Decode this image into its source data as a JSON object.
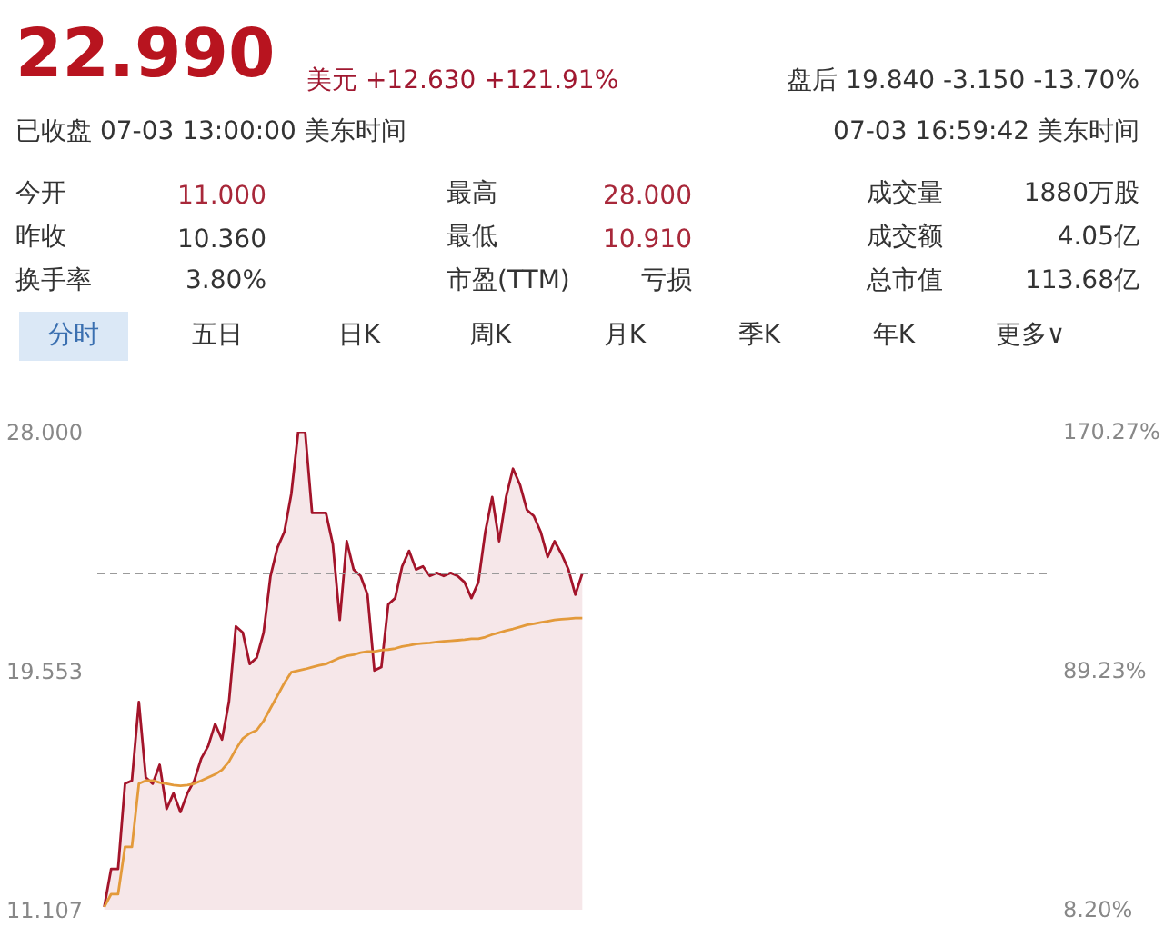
{
  "chart_data": [
    {
      "type": "other",
      "title": "22.990",
      "annotations": [
        "美元 +12.630 +121.91%",
        "盘后 19.840 -3.150 -13.70%",
        "已收盘 07-03 13:00:00 美东时间",
        "07-03 16:59:42 美东时间",
        "今开",
        "11.000",
        "最高",
        "28.000",
        "成交量",
        "1880万股",
        "昨收",
        "10.360",
        "最低",
        "10.910",
        "成交额",
        "4.05亿",
        "换手率",
        "3.80%",
        "市盈(TTM)",
        "亏损",
        "总市值",
        "113.68亿",
        "分时",
        "五日",
        "日K",
        "周K",
        "月K",
        "季K",
        "年K",
        "更多∨"
      ]
    },
    {
      "type": "area",
      "categories": [
        null,
        null,
        null,
        null,
        null,
        null,
        null,
        null,
        null,
        null,
        null,
        null,
        null,
        null,
        null,
        null,
        null,
        null,
        null,
        null,
        null,
        null,
        null,
        null,
        null,
        null,
        null,
        null,
        null,
        null,
        null,
        null,
        null,
        null,
        null,
        null,
        null,
        null,
        null,
        null,
        null,
        null,
        null,
        null,
        null,
        null,
        null,
        null,
        null,
        null,
        null,
        null,
        null,
        null,
        null,
        null,
        null,
        null,
        null,
        null,
        null,
        null,
        null,
        null,
        null,
        null,
        null,
        null,
        null,
        null
      ],
      "series": [
        {
          "type": "area",
          "color": "#a3142a",
          "values": [
            11.2,
            12.55,
            12.55,
            15.56,
            15.67,
            18.45,
            15.78,
            15.56,
            16.23,
            14.67,
            15.22,
            14.56,
            15.22,
            15.67,
            16.45,
            16.89,
            17.67,
            17.12,
            18.45,
            21.12,
            20.9,
            19.79,
            20.01,
            20.9,
            22.9,
            23.9,
            24.46,
            25.8,
            28.0,
            28.0,
            25.13,
            25.13,
            25.13,
            24.02,
            21.35,
            24.13,
            23.13,
            22.9,
            22.24,
            19.56,
            19.68,
            21.9,
            22.12,
            23.24,
            23.79,
            23.13,
            23.24,
            22.9,
            23.01,
            22.9,
            23.01,
            22.9,
            22.68,
            22.12,
            22.68,
            24.46,
            25.69,
            24.13,
            25.69,
            26.69,
            26.13,
            25.24,
            25.02,
            24.46,
            23.57,
            24.13,
            23.68,
            23.13,
            22.24,
            22.99
          ]
        },
        {
          "type": "line",
          "color": "#e39a3b",
          "values": [
            11.2,
            11.66,
            11.66,
            13.33,
            13.33,
            15.56,
            15.67,
            15.67,
            15.6,
            15.56,
            15.51,
            15.49,
            15.51,
            15.56,
            15.67,
            15.78,
            15.89,
            16.05,
            16.34,
            16.78,
            17.16,
            17.34,
            17.45,
            17.78,
            18.23,
            18.67,
            19.12,
            19.5,
            19.56,
            19.61,
            19.68,
            19.74,
            19.79,
            19.9,
            20.01,
            20.08,
            20.12,
            20.19,
            20.23,
            20.23,
            20.28,
            20.3,
            20.34,
            20.41,
            20.45,
            20.5,
            20.52,
            20.54,
            20.57,
            20.59,
            20.61,
            20.63,
            20.65,
            20.68,
            20.68,
            20.74,
            20.83,
            20.9,
            20.97,
            21.03,
            21.1,
            21.17,
            21.21,
            21.26,
            21.3,
            21.35,
            21.37,
            21.39,
            21.41,
            21.41
          ]
        }
      ],
      "ylim": [
        11.107,
        28.0
      ],
      "yticks": [
        {
          "value": 11.107,
          "label": "11.107"
        },
        {
          "value": 19.553,
          "label": "19.553"
        },
        {
          "value": 28.0,
          "label": "28.000"
        }
      ],
      "y2lim": [
        8.2,
        170.27
      ],
      "y2ticks": [
        {
          "value": 8.2,
          "label": "8.20%"
        },
        {
          "value": 89.23,
          "label": "89.23%"
        },
        {
          "value": 170.27,
          "label": "170.27%"
        }
      ],
      "ref_lines": [
        {
          "axis": "y",
          "value": 22.99,
          "color": "#9a9a9a",
          "line_style": "dashed"
        }
      ],
      "tick_labels": "y",
      "grid": false
    }
  ]
}
